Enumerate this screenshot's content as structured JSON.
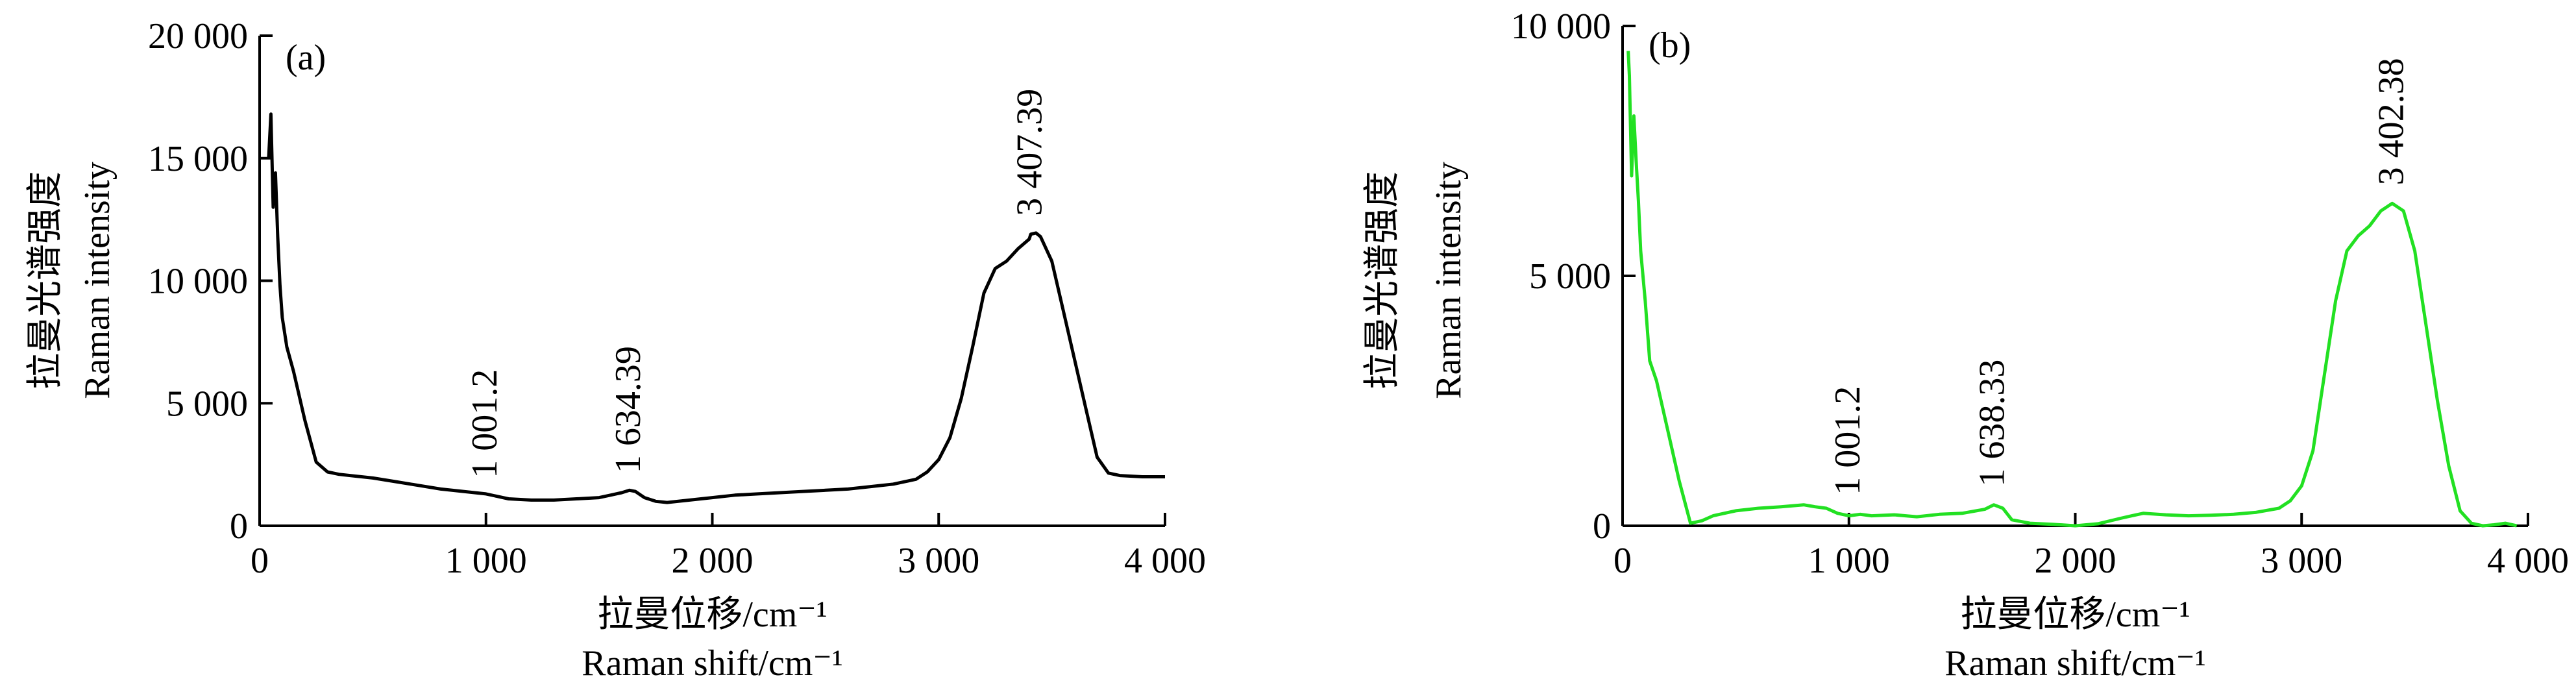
{
  "chart_data": [
    {
      "type": "line",
      "panel_label": "(a)",
      "ylabel_cn": "拉曼光谱强度",
      "ylabel_en": "Raman intensity",
      "xlabel_cn": "拉曼位移/cm⁻¹",
      "xlabel_en": "Raman shift/cm⁻¹",
      "xlim": [
        0,
        4000
      ],
      "ylim": [
        0,
        20000
      ],
      "x_ticks": [
        0,
        1000,
        2000,
        3000,
        4000
      ],
      "x_tick_labels": [
        "0",
        "1 000",
        "2 000",
        "3 000",
        "4 000"
      ],
      "y_ticks": [
        0,
        5000,
        10000,
        15000,
        20000
      ],
      "y_tick_labels": [
        "0",
        "5 000",
        "10 000",
        "15 000",
        "20 000"
      ],
      "grid": false,
      "line_color": "#000000",
      "annotations": [
        {
          "text": "1 001.2",
          "x": 1001.2,
          "y": 1200
        },
        {
          "text": "1 634.39",
          "x": 1634.39,
          "y": 1400
        },
        {
          "text": "3 407.39",
          "x": 3407.39,
          "y": 11900
        }
      ],
      "series": [
        {
          "x": [
            40,
            50,
            60,
            70,
            80,
            90,
            100,
            120,
            150,
            200,
            250,
            300,
            350,
            400,
            500,
            600,
            700,
            800,
            900,
            1000,
            1050,
            1100,
            1200,
            1300,
            1400,
            1500,
            1550,
            1600,
            1634,
            1660,
            1700,
            1750,
            1800,
            1900,
            2000,
            2100,
            2200,
            2300,
            2400,
            2500,
            2600,
            2700,
            2800,
            2900,
            2950,
            3000,
            3050,
            3100,
            3150,
            3200,
            3250,
            3300,
            3350,
            3400,
            3407,
            3430,
            3450,
            3500,
            3550,
            3600,
            3650,
            3700,
            3750,
            3800,
            3900,
            4000
          ],
          "y": [
            15000,
            16800,
            13000,
            14400,
            11800,
            9800,
            8500,
            7300,
            6300,
            4300,
            2600,
            2200,
            2100,
            2050,
            1950,
            1800,
            1650,
            1500,
            1400,
            1300,
            1200,
            1100,
            1050,
            1050,
            1100,
            1150,
            1250,
            1350,
            1450,
            1400,
            1150,
            1000,
            950,
            1050,
            1150,
            1250,
            1300,
            1350,
            1400,
            1450,
            1500,
            1600,
            1700,
            1900,
            2200,
            2700,
            3600,
            5200,
            7300,
            9500,
            10500,
            10800,
            11300,
            11700,
            11900,
            11950,
            11800,
            10800,
            8800,
            6800,
            4800,
            2800,
            2150,
            2050,
            2000,
            2000
          ]
        }
      ]
    },
    {
      "type": "line",
      "panel_label": "(b)",
      "ylabel_cn": "拉曼光谱强度",
      "ylabel_en": "Raman intensity",
      "xlabel_cn": "拉曼位移/cm⁻¹",
      "xlabel_en": "Raman shift/cm⁻¹",
      "xlim": [
        0,
        4000
      ],
      "ylim": [
        0,
        10000
      ],
      "x_ticks": [
        0,
        1000,
        2000,
        3000,
        4000
      ],
      "x_tick_labels": [
        "0",
        "1 000",
        "2 000",
        "3 000",
        "4 000"
      ],
      "y_ticks": [
        0,
        5000,
        10000
      ],
      "y_tick_labels": [
        "0",
        "5 000",
        "10 000"
      ],
      "grid": false,
      "line_color": "#22e022",
      "annotations": [
        {
          "text": "1 001.2",
          "x": 1001.2,
          "y": 250
        },
        {
          "text": "1 638.33",
          "x": 1638.33,
          "y": 420
        },
        {
          "text": "3 402.38",
          "x": 3402.38,
          "y": 6450
        }
      ],
      "series": [
        {
          "x": [
            25,
            30,
            40,
            50,
            60,
            70,
            80,
            100,
            120,
            150,
            200,
            250,
            300,
            350,
            400,
            500,
            600,
            700,
            800,
            850,
            900,
            950,
            1000,
            1050,
            1100,
            1200,
            1300,
            1400,
            1500,
            1600,
            1640,
            1680,
            1720,
            1800,
            1900,
            2000,
            2100,
            2200,
            2250,
            2300,
            2400,
            2500,
            2600,
            2700,
            2800,
            2900,
            2950,
            3000,
            3050,
            3100,
            3150,
            3200,
            3250,
            3300,
            3350,
            3400,
            3450,
            3500,
            3550,
            3600,
            3650,
            3700,
            3750,
            3800,
            3850,
            3900,
            3950
          ],
          "y": [
            9500,
            9000,
            7000,
            8200,
            7300,
            6500,
            5500,
            4500,
            3300,
            2900,
            1900,
            900,
            50,
            100,
            200,
            300,
            350,
            380,
            420,
            380,
            350,
            250,
            200,
            230,
            200,
            220,
            180,
            230,
            250,
            330,
            420,
            350,
            120,
            50,
            30,
            0,
            40,
            150,
            200,
            250,
            220,
            200,
            210,
            230,
            270,
            350,
            500,
            800,
            1500,
            3000,
            4500,
            5500,
            5800,
            6000,
            6300,
            6450,
            6300,
            5500,
            4000,
            2500,
            1200,
            300,
            50,
            0,
            20,
            50,
            0
          ]
        }
      ]
    }
  ]
}
